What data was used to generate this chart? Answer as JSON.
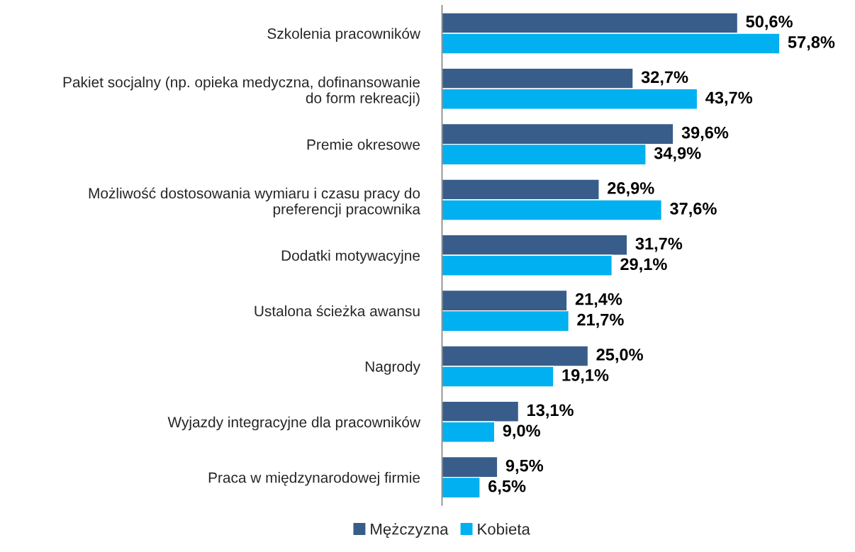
{
  "chart_data": {
    "type": "bar",
    "orientation": "horizontal",
    "categories": [
      "Szkolenia pracowników",
      "Pakiet socjalny (np. opieka medyczna, dofinansowanie\ndo form rekreacji)",
      "Premie okresowe",
      "Możliwość dostosowania wymiaru i czasu pracy do\npreferencji pracownika",
      "Dodatki motywacyjne",
      "Ustalona ścieżka awansu",
      "Nagrody",
      "Wyjazdy integracyjne dla pracowników",
      "Praca w międzynarodowej firmie"
    ],
    "series": [
      {
        "name": "Mężczyzna",
        "color": "#385d8a",
        "values": [
          50.6,
          32.7,
          39.6,
          26.9,
          31.7,
          21.4,
          25.0,
          13.1,
          9.5
        ],
        "value_labels": [
          "50,6%",
          "32,7%",
          "39,6%",
          "26,9%",
          "31,7%",
          "21,4%",
          "25,0%",
          "13,1%",
          "9,5%"
        ]
      },
      {
        "name": "Kobieta",
        "color": "#00b0f0",
        "values": [
          57.8,
          43.7,
          34.9,
          37.6,
          29.1,
          21.7,
          19.1,
          9.0,
          6.5
        ],
        "value_labels": [
          "57,8%",
          "43,7%",
          "34,9%",
          "37,6%",
          "29,1%",
          "21,7%",
          "19,1%",
          "9,0%",
          "6,5%"
        ]
      }
    ],
    "legend": "bottom",
    "grid": false
  }
}
